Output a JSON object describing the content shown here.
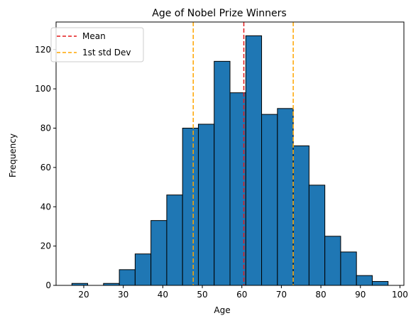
{
  "chart_data": {
    "type": "bar",
    "title": "Age of Nobel Prize Winners",
    "xlabel": "Age",
    "ylabel": "Frequency",
    "xlim": [
      13,
      101
    ],
    "ylim": [
      0,
      134
    ],
    "xticks": [
      20,
      30,
      40,
      50,
      60,
      70,
      80,
      90,
      100
    ],
    "yticks": [
      0,
      20,
      40,
      60,
      80,
      100,
      120
    ],
    "bar_color": "#1f77b4",
    "bar_edge_color": "#000000",
    "bins": [
      {
        "x0": 17,
        "x1": 21,
        "value": 1
      },
      {
        "x0": 21,
        "x1": 25,
        "value": 0
      },
      {
        "x0": 25,
        "x1": 29,
        "value": 1
      },
      {
        "x0": 29,
        "x1": 33,
        "value": 8
      },
      {
        "x0": 33,
        "x1": 37,
        "value": 16
      },
      {
        "x0": 37,
        "x1": 41,
        "value": 33
      },
      {
        "x0": 41,
        "x1": 45,
        "value": 46
      },
      {
        "x0": 45,
        "x1": 49,
        "value": 80
      },
      {
        "x0": 49,
        "x1": 53,
        "value": 82
      },
      {
        "x0": 53,
        "x1": 57,
        "value": 114
      },
      {
        "x0": 57,
        "x1": 61,
        "value": 98
      },
      {
        "x0": 61,
        "x1": 65,
        "value": 127
      },
      {
        "x0": 65,
        "x1": 69,
        "value": 87
      },
      {
        "x0": 69,
        "x1": 73,
        "value": 90
      },
      {
        "x0": 73,
        "x1": 77,
        "value": 71
      },
      {
        "x0": 77,
        "x1": 81,
        "value": 51
      },
      {
        "x0": 81,
        "x1": 85,
        "value": 25
      },
      {
        "x0": 85,
        "x1": 89,
        "value": 17
      },
      {
        "x0": 89,
        "x1": 93,
        "value": 5
      },
      {
        "x0": 93,
        "x1": 97,
        "value": 2
      }
    ],
    "vlines": [
      {
        "name": "Mean",
        "x": 60.5,
        "color": "#e31a1c",
        "style": "dashed"
      },
      {
        "name": "1st std Dev",
        "x": 47.7,
        "color": "#ffa500",
        "style": "dashed"
      },
      {
        "name": "1st std Dev",
        "x": 73.0,
        "color": "#ffa500",
        "style": "dashed"
      }
    ],
    "legend": {
      "placement": "top-left",
      "entries": [
        {
          "label": "Mean",
          "color": "#e31a1c"
        },
        {
          "label": "1st std Dev",
          "color": "#ffa500"
        }
      ]
    },
    "grid": false
  }
}
